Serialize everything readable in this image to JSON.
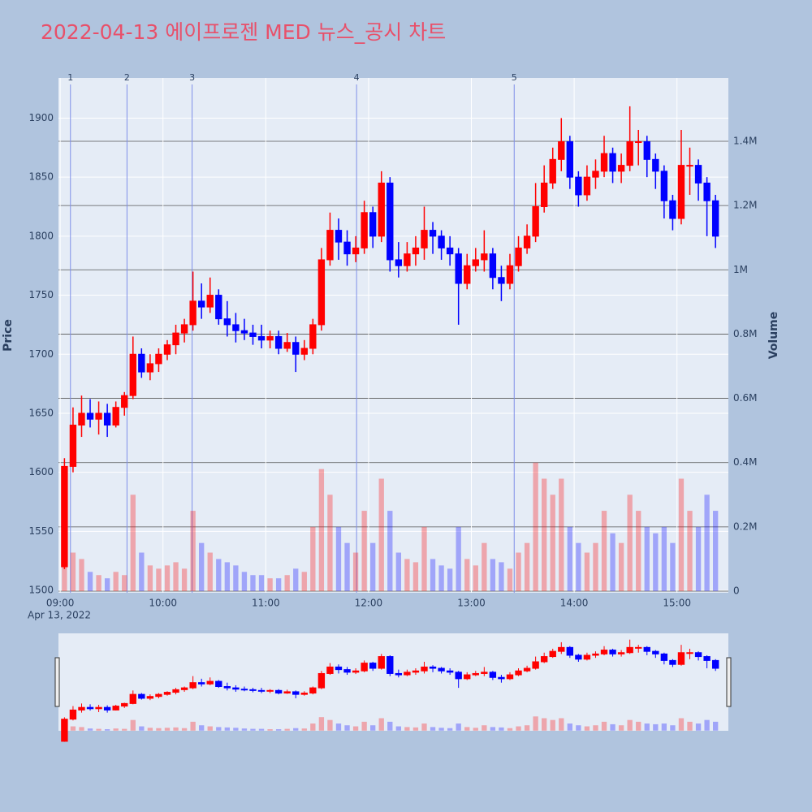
{
  "chart_data": {
    "type": "candlestick",
    "title": "2022-04-13 에이프로젠 MED 뉴스_공시 차트",
    "y_title": "Price",
    "y2_title": "Volume",
    "x_date_label": "Apr 13, 2022",
    "increasing_color": "#ff0000",
    "decreasing_color": "#0000ff",
    "x": [
      "2022-04-13 09:00",
      "2022-04-13 09:05",
      "2022-04-13 09:10",
      "2022-04-13 09:15",
      "2022-04-13 09:20",
      "2022-04-13 09:25",
      "2022-04-13 09:30",
      "2022-04-13 09:35",
      "2022-04-13 09:40",
      "2022-04-13 09:45",
      "2022-04-13 09:50",
      "2022-04-13 09:55",
      "2022-04-13 10:00",
      "2022-04-13 10:05",
      "2022-04-13 10:10",
      "2022-04-13 10:15",
      "2022-04-13 10:20",
      "2022-04-13 10:25",
      "2022-04-13 10:30",
      "2022-04-13 10:35",
      "2022-04-13 10:40",
      "2022-04-13 10:45",
      "2022-04-13 10:50",
      "2022-04-13 10:55",
      "2022-04-13 11:00",
      "2022-04-13 11:05",
      "2022-04-13 11:10",
      "2022-04-13 11:15",
      "2022-04-13 11:20",
      "2022-04-13 11:25",
      "2022-04-13 11:30",
      "2022-04-13 11:35",
      "2022-04-13 11:40",
      "2022-04-13 11:45",
      "2022-04-13 11:50",
      "2022-04-13 11:55",
      "2022-04-13 12:00",
      "2022-04-13 12:05",
      "2022-04-13 12:10",
      "2022-04-13 12:15",
      "2022-04-13 12:20",
      "2022-04-13 12:25",
      "2022-04-13 12:30",
      "2022-04-13 12:35",
      "2022-04-13 12:40",
      "2022-04-13 12:45",
      "2022-04-13 12:50",
      "2022-04-13 12:55",
      "2022-04-13 13:00",
      "2022-04-13 13:05",
      "2022-04-13 13:10",
      "2022-04-13 13:15",
      "2022-04-13 13:20",
      "2022-04-13 13:25",
      "2022-04-13 13:30",
      "2022-04-13 13:35",
      "2022-04-13 13:40",
      "2022-04-13 13:45",
      "2022-04-13 13:50",
      "2022-04-13 13:55",
      "2022-04-13 14:00",
      "2022-04-13 14:05",
      "2022-04-13 14:10",
      "2022-04-13 14:15",
      "2022-04-13 14:20",
      "2022-04-13 14:25",
      "2022-04-13 14:30",
      "2022-04-13 14:35",
      "2022-04-13 14:40",
      "2022-04-13 14:45",
      "2022-04-13 14:50",
      "2022-04-13 14:55",
      "2022-04-13 15:00",
      "2022-04-13 15:05",
      "2022-04-13 15:10",
      "2022-04-13 15:15",
      "2022-04-13 15:20"
    ],
    "open": [
      1520,
      1605,
      1640,
      1650,
      1645,
      1650,
      1640,
      1655,
      1665,
      1700,
      1685,
      1692,
      1700,
      1708,
      1718,
      1725,
      1745,
      1740,
      1750,
      1730,
      1725,
      1720,
      1718,
      1715,
      1712,
      1715,
      1705,
      1710,
      1700,
      1705,
      1725,
      1780,
      1805,
      1795,
      1785,
      1790,
      1820,
      1800,
      1845,
      1780,
      1775,
      1785,
      1790,
      1805,
      1800,
      1790,
      1785,
      1760,
      1775,
      1780,
      1785,
      1765,
      1760,
      1775,
      1790,
      1800,
      1825,
      1845,
      1865,
      1880,
      1850,
      1835,
      1850,
      1855,
      1870,
      1855,
      1860,
      1880,
      1880,
      1865,
      1855,
      1830,
      1815,
      1860,
      1860,
      1845,
      1830
    ],
    "high": [
      1612,
      1655,
      1665,
      1662,
      1660,
      1658,
      1660,
      1668,
      1715,
      1705,
      1700,
      1705,
      1712,
      1725,
      1730,
      1770,
      1760,
      1765,
      1755,
      1745,
      1735,
      1730,
      1725,
      1725,
      1720,
      1720,
      1718,
      1715,
      1712,
      1730,
      1790,
      1820,
      1815,
      1805,
      1800,
      1830,
      1825,
      1855,
      1850,
      1795,
      1795,
      1800,
      1825,
      1812,
      1805,
      1800,
      1790,
      1785,
      1790,
      1805,
      1790,
      1775,
      1785,
      1800,
      1810,
      1845,
      1860,
      1875,
      1900,
      1885,
      1855,
      1860,
      1865,
      1885,
      1875,
      1870,
      1910,
      1890,
      1885,
      1870,
      1860,
      1835,
      1890,
      1875,
      1865,
      1850,
      1835
    ],
    "low": [
      1518,
      1600,
      1630,
      1638,
      1632,
      1630,
      1638,
      1648,
      1662,
      1680,
      1678,
      1685,
      1695,
      1700,
      1710,
      1720,
      1730,
      1735,
      1725,
      1715,
      1710,
      1712,
      1708,
      1705,
      1705,
      1700,
      1702,
      1685,
      1695,
      1700,
      1720,
      1775,
      1780,
      1775,
      1778,
      1785,
      1790,
      1795,
      1770,
      1765,
      1770,
      1775,
      1780,
      1785,
      1780,
      1775,
      1725,
      1755,
      1770,
      1770,
      1755,
      1745,
      1755,
      1770,
      1785,
      1795,
      1820,
      1840,
      1855,
      1840,
      1825,
      1830,
      1840,
      1850,
      1845,
      1845,
      1855,
      1860,
      1850,
      1840,
      1815,
      1805,
      1810,
      1835,
      1830,
      1800,
      1790
    ],
    "close": [
      1605,
      1640,
      1650,
      1645,
      1650,
      1640,
      1655,
      1665,
      1700,
      1685,
      1692,
      1700,
      1708,
      1718,
      1725,
      1745,
      1740,
      1750,
      1730,
      1725,
      1720,
      1718,
      1715,
      1712,
      1715,
      1705,
      1710,
      1700,
      1705,
      1725,
      1780,
      1805,
      1795,
      1785,
      1790,
      1820,
      1800,
      1845,
      1780,
      1775,
      1785,
      1790,
      1805,
      1800,
      1790,
      1785,
      1760,
      1775,
      1780,
      1785,
      1765,
      1760,
      1775,
      1790,
      1800,
      1825,
      1845,
      1865,
      1880,
      1850,
      1835,
      1850,
      1855,
      1870,
      1855,
      1860,
      1880,
      1880,
      1865,
      1855,
      1830,
      1815,
      1860,
      1860,
      1845,
      1830,
      1800
    ],
    "volume": [
      90000,
      120000,
      100000,
      60000,
      50000,
      40000,
      60000,
      50000,
      300000,
      120000,
      80000,
      70000,
      80000,
      90000,
      70000,
      250000,
      150000,
      120000,
      100000,
      90000,
      80000,
      60000,
      50000,
      50000,
      40000,
      40000,
      50000,
      70000,
      60000,
      200000,
      380000,
      300000,
      200000,
      150000,
      120000,
      250000,
      150000,
      350000,
      250000,
      120000,
      100000,
      90000,
      200000,
      100000,
      80000,
      70000,
      200000,
      100000,
      80000,
      150000,
      100000,
      90000,
      70000,
      120000,
      150000,
      400000,
      350000,
      300000,
      350000,
      200000,
      150000,
      120000,
      150000,
      250000,
      180000,
      150000,
      300000,
      250000,
      200000,
      180000,
      200000,
      150000,
      350000,
      250000,
      200000,
      300000,
      250000
    ],
    "news_markers": [
      {
        "x": "2022-04-13 09:06",
        "label": "1"
      },
      {
        "x": "2022-04-13 09:39",
        "label": "2"
      },
      {
        "x": "2022-04-13 10:17",
        "label": "3"
      },
      {
        "x": "2022-04-13 11:53",
        "label": "4"
      },
      {
        "x": "2022-04-13 13:25",
        "label": "5"
      }
    ],
    "xlim": [
      "2022-04-13 08:59",
      "2022-04-13 15:30"
    ],
    "xticks": [
      {
        "value": "2022-04-13 09:00",
        "label": "09:00"
      },
      {
        "value": "2022-04-13 10:00",
        "label": "10:00"
      },
      {
        "value": "2022-04-13 11:00",
        "label": "11:00"
      },
      {
        "value": "2022-04-13 12:00",
        "label": "12:00"
      },
      {
        "value": "2022-04-13 13:00",
        "label": "13:00"
      },
      {
        "value": "2022-04-13 14:00",
        "label": "14:00"
      },
      {
        "value": "2022-04-13 15:00",
        "label": "15:00"
      }
    ],
    "ylim": [
      1498,
      1934
    ],
    "yticks": [
      1500,
      1550,
      1600,
      1650,
      1700,
      1750,
      1800,
      1850,
      1900
    ],
    "y2lim": [
      -5000,
      1597000
    ],
    "y2ticks": [
      0,
      {
        "value": 200000,
        "label": "0.2M"
      },
      {
        "value": 400000,
        "label": "0.4M"
      },
      {
        "value": 600000,
        "label": "0.6M"
      },
      {
        "value": 800000,
        "label": "0.8M"
      },
      {
        "value": 1000000,
        "label": "1M"
      },
      {
        "value": 1200000,
        "label": "1.2M"
      },
      {
        "value": 1400000,
        "label": "1.4M"
      }
    ],
    "grid": true
  }
}
